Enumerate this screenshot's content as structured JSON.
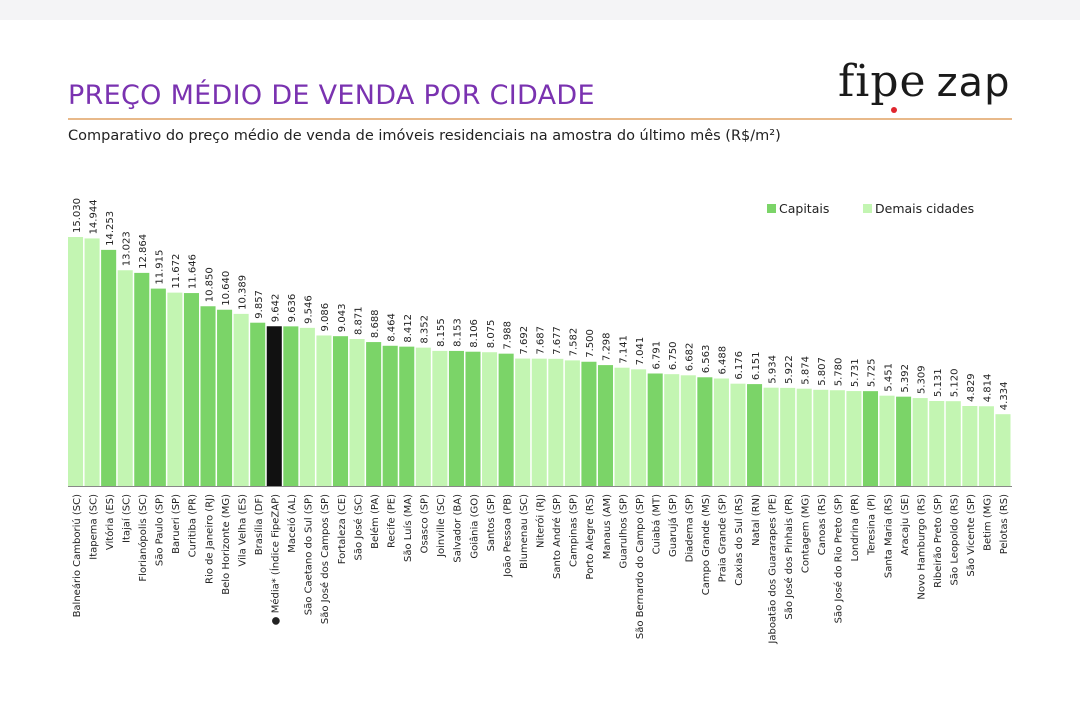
{
  "header": {
    "title": "PREÇO MÉDIO DE VENDA POR CIDADE",
    "subtitle": "Comparativo do preço médio de venda de imóveis residenciais na amostra do último mês (R$/m²)",
    "logo_part_a": "fipe",
    "logo_part_b": "zap"
  },
  "colors": {
    "title": "#7a32b0",
    "rule": "#e8b98a",
    "capital": "#7bd468",
    "other": "#c3f5b2",
    "average": "#111111",
    "logo_dot": "#e0262e"
  },
  "chart_data": {
    "type": "bar",
    "title": "PREÇO MÉDIO DE VENDA POR CIDADE",
    "ylabel": "R$/m²",
    "xlabel": "",
    "ylim": [
      0,
      15.03
    ],
    "legend": {
      "placement": "top-right",
      "entries": [
        {
          "key": "capital",
          "label": "Capitais"
        },
        {
          "key": "other",
          "label": "Demais cidades"
        }
      ]
    },
    "bars": [
      {
        "label": "Balneário Camboriú (SC)",
        "value": 15030,
        "display": "15.030",
        "group": "other"
      },
      {
        "label": "Itapema (SC)",
        "value": 14944,
        "display": "14.944",
        "group": "other"
      },
      {
        "label": "Vitória (ES)",
        "value": 14253,
        "display": "14.253",
        "group": "capital"
      },
      {
        "label": "Itajaí (SC)",
        "value": 13023,
        "display": "13.023",
        "group": "other"
      },
      {
        "label": "Florianópolis (SC)",
        "value": 12864,
        "display": "12.864",
        "group": "capital"
      },
      {
        "label": "São Paulo (SP)",
        "value": 11915,
        "display": "11.915",
        "group": "capital"
      },
      {
        "label": "Barueri (SP)",
        "value": 11672,
        "display": "11.672",
        "group": "other"
      },
      {
        "label": "Curitiba (PR)",
        "value": 11646,
        "display": "11.646",
        "group": "capital"
      },
      {
        "label": "Rio de Janeiro (RJ)",
        "value": 10850,
        "display": "10.850",
        "group": "capital"
      },
      {
        "label": "Belo Horizonte (MG)",
        "value": 10640,
        "display": "10.640",
        "group": "capital"
      },
      {
        "label": "Vila Velha (ES)",
        "value": 10389,
        "display": "10.389",
        "group": "other"
      },
      {
        "label": "Brasília (DF)",
        "value": 9857,
        "display": "9.857",
        "group": "capital"
      },
      {
        "label": "● Média* (Índice FipeZAP)",
        "value": 9642,
        "display": "9.642",
        "group": "average"
      },
      {
        "label": "Maceió (AL)",
        "value": 9636,
        "display": "9.636",
        "group": "capital"
      },
      {
        "label": "São Caetano do Sul (SP)",
        "value": 9546,
        "display": "9.546",
        "group": "other"
      },
      {
        "label": "São José dos Campos (SP)",
        "value": 9086,
        "display": "9.086",
        "group": "other"
      },
      {
        "label": "Fortaleza (CE)",
        "value": 9043,
        "display": "9.043",
        "group": "capital"
      },
      {
        "label": "São José (SC)",
        "value": 8871,
        "display": "8.871",
        "group": "other"
      },
      {
        "label": "Belém (PA)",
        "value": 8688,
        "display": "8.688",
        "group": "capital"
      },
      {
        "label": "Recife (PE)",
        "value": 8464,
        "display": "8.464",
        "group": "capital"
      },
      {
        "label": "São Luís (MA)",
        "value": 8412,
        "display": "8.412",
        "group": "capital"
      },
      {
        "label": "Osasco (SP)",
        "value": 8352,
        "display": "8.352",
        "group": "other"
      },
      {
        "label": "Joinville (SC)",
        "value": 8155,
        "display": "8.155",
        "group": "other"
      },
      {
        "label": "Salvador (BA)",
        "value": 8153,
        "display": "8.153",
        "group": "capital"
      },
      {
        "label": "Goiânia (GO)",
        "value": 8106,
        "display": "8.106",
        "group": "capital"
      },
      {
        "label": "Santos (SP)",
        "value": 8075,
        "display": "8.075",
        "group": "other"
      },
      {
        "label": "João Pessoa (PB)",
        "value": 7988,
        "display": "7.988",
        "group": "capital"
      },
      {
        "label": "Blumenau (SC)",
        "value": 7692,
        "display": "7.692",
        "group": "other"
      },
      {
        "label": "Niterói (RJ)",
        "value": 7687,
        "display": "7.687",
        "group": "other"
      },
      {
        "label": "Santo André (SP)",
        "value": 7677,
        "display": "7.677",
        "group": "other"
      },
      {
        "label": "Campinas (SP)",
        "value": 7582,
        "display": "7.582",
        "group": "other"
      },
      {
        "label": "Porto Alegre (RS)",
        "value": 7500,
        "display": "7.500",
        "group": "capital"
      },
      {
        "label": "Manaus (AM)",
        "value": 7298,
        "display": "7.298",
        "group": "capital"
      },
      {
        "label": "Guarulhos (SP)",
        "value": 7141,
        "display": "7.141",
        "group": "other"
      },
      {
        "label": "São Bernardo do Campo (SP)",
        "value": 7041,
        "display": "7.041",
        "group": "other"
      },
      {
        "label": "Cuiabá (MT)",
        "value": 6791,
        "display": "6.791",
        "group": "capital"
      },
      {
        "label": "Guarujá (SP)",
        "value": 6750,
        "display": "6.750",
        "group": "other"
      },
      {
        "label": "Diadema (SP)",
        "value": 6682,
        "display": "6.682",
        "group": "other"
      },
      {
        "label": "Campo Grande (MS)",
        "value": 6563,
        "display": "6.563",
        "group": "capital"
      },
      {
        "label": "Praia Grande (SP)",
        "value": 6488,
        "display": "6.488",
        "group": "other"
      },
      {
        "label": "Caxias do Sul (RS)",
        "value": 6176,
        "display": "6.176",
        "group": "other"
      },
      {
        "label": "Natal (RN)",
        "value": 6151,
        "display": "6.151",
        "group": "capital"
      },
      {
        "label": "Jaboatão dos Guararapes (PE)",
        "value": 5934,
        "display": "5.934",
        "group": "other"
      },
      {
        "label": "São José dos Pinhais (PR)",
        "value": 5922,
        "display": "5.922",
        "group": "other"
      },
      {
        "label": "Contagem (MG)",
        "value": 5874,
        "display": "5.874",
        "group": "other"
      },
      {
        "label": "Canoas (RS)",
        "value": 5807,
        "display": "5.807",
        "group": "other"
      },
      {
        "label": "São José do Rio Preto (SP)",
        "value": 5780,
        "display": "5.780",
        "group": "other"
      },
      {
        "label": "Londrina (PR)",
        "value": 5731,
        "display": "5.731",
        "group": "other"
      },
      {
        "label": "Teresina (PI)",
        "value": 5725,
        "display": "5.725",
        "group": "capital"
      },
      {
        "label": "Santa Maria (RS)",
        "value": 5451,
        "display": "5.451",
        "group": "other"
      },
      {
        "label": "Aracaju (SE)",
        "value": 5392,
        "display": "5.392",
        "group": "capital"
      },
      {
        "label": "Novo Hamburgo (RS)",
        "value": 5309,
        "display": "5.309",
        "group": "other"
      },
      {
        "label": "Ribeirão Preto (SP)",
        "value": 5131,
        "display": "5.131",
        "group": "other"
      },
      {
        "label": "São Leopoldo (RS)",
        "value": 5120,
        "display": "5.120",
        "group": "other"
      },
      {
        "label": "São Vicente (SP)",
        "value": 4829,
        "display": "4.829",
        "group": "other"
      },
      {
        "label": "Betim (MG)",
        "value": 4814,
        "display": "4.814",
        "group": "other"
      },
      {
        "label": "Pelotas (RS)",
        "value": 4334,
        "display": "4.334",
        "group": "other"
      }
    ]
  }
}
